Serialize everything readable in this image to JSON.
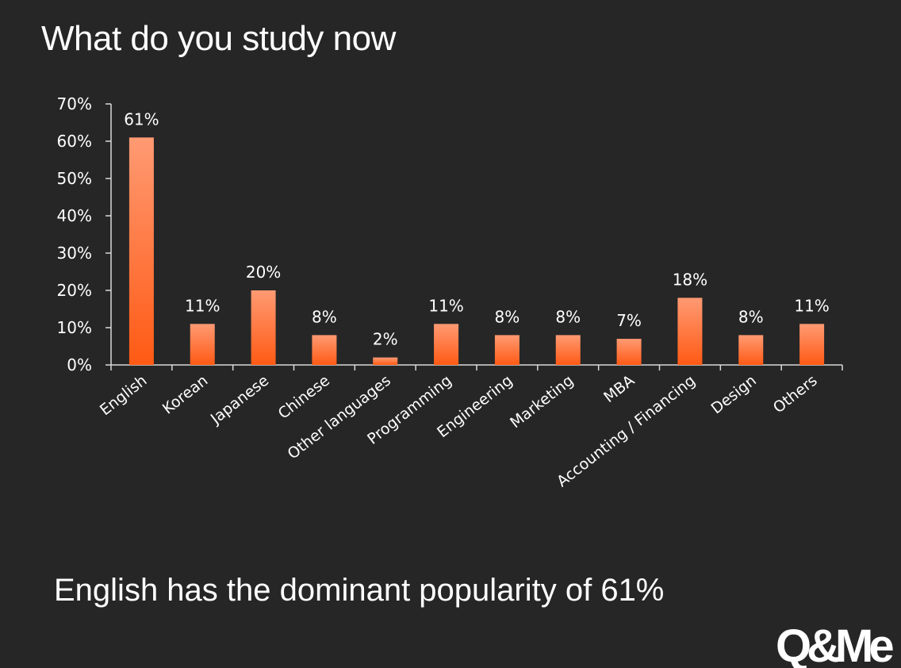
{
  "slide": {
    "title": "What do you study now",
    "conclusion": "English has the dominant popularity of 61%",
    "logo_text": "Q&Me"
  },
  "colors": {
    "background": "#262626",
    "bar_top": "#ff9a73",
    "bar_bottom": "#ff5a14",
    "axis": "#d9d9d9",
    "text": "#ffffff"
  },
  "chart_data": {
    "type": "bar",
    "categories": [
      "English",
      "Korean",
      "Japanese",
      "Chinese",
      "Other languages",
      "Programming",
      "Engineering",
      "Marketing",
      "MBA",
      "Accounting / Financing",
      "Design",
      "Others"
    ],
    "values": [
      61,
      11,
      20,
      8,
      2,
      11,
      8,
      8,
      7,
      18,
      8,
      11
    ],
    "data_labels": [
      "61%",
      "11%",
      "20%",
      "8%",
      "2%",
      "11%",
      "8%",
      "8%",
      "7%",
      "18%",
      "8%",
      "11%"
    ],
    "ylim": [
      0,
      70
    ],
    "yticks": [
      0,
      10,
      20,
      30,
      40,
      50,
      60,
      70
    ],
    "ytick_labels": [
      "0%",
      "10%",
      "20%",
      "30%",
      "40%",
      "50%",
      "60%",
      "70%"
    ],
    "title": "",
    "xlabel": "",
    "ylabel": "",
    "grid": false,
    "legend": "none"
  }
}
